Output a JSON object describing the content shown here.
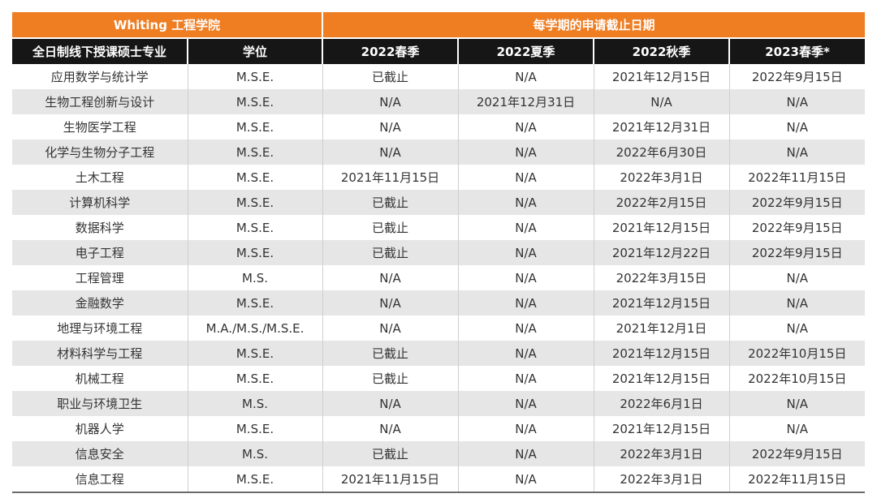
{
  "header": {
    "school": "Whiting 工程学院",
    "deadline_group": "每学期的申请截止日期"
  },
  "columns": [
    "全日制线下授课硕士专业",
    "学位",
    "2022春季",
    "2022夏季",
    "2022秋季",
    "2023春季*"
  ],
  "rows": [
    [
      "应用数学与统计学",
      "M.S.E.",
      "已截止",
      "N/A",
      "2021年12月15日",
      "2022年9月15日"
    ],
    [
      "生物工程创新与设计",
      "M.S.E.",
      "N/A",
      "2021年12月31日",
      "N/A",
      "N/A"
    ],
    [
      "生物医学工程",
      "M.S.E.",
      "N/A",
      "N/A",
      "2021年12月31日",
      "N/A"
    ],
    [
      "化学与生物分子工程",
      "M.S.E.",
      "N/A",
      "N/A",
      "2022年6月30日",
      "N/A"
    ],
    [
      "土木工程",
      "M.S.E.",
      "2021年11月15日",
      "N/A",
      "2022年3月1日",
      "2022年11月15日"
    ],
    [
      "计算机科学",
      "M.S.E.",
      "已截止",
      "N/A",
      "2022年2月15日",
      "2022年9月15日"
    ],
    [
      "数据科学",
      "M.S.E.",
      "已截止",
      "N/A",
      "2021年12月15日",
      "2022年9月15日"
    ],
    [
      "电子工程",
      "M.S.E.",
      "已截止",
      "N/A",
      "2021年12月22日",
      "2022年9月15日"
    ],
    [
      "工程管理",
      "M.S.",
      "N/A",
      "N/A",
      "2022年3月15日",
      "N/A"
    ],
    [
      "金融数学",
      "M.S.E.",
      "N/A",
      "N/A",
      "2021年12月15日",
      "N/A"
    ],
    [
      "地理与环境工程",
      "M.A./M.S./M.S.E.",
      "N/A",
      "N/A",
      "2021年12月1日",
      "N/A"
    ],
    [
      "材料科学与工程",
      "M.S.E.",
      "已截止",
      "N/A",
      "2021年12月15日",
      "2022年10月15日"
    ],
    [
      "机械工程",
      "M.S.E.",
      "已截止",
      "N/A",
      "2021年12月15日",
      "2022年10月15日"
    ],
    [
      "职业与环境卫生",
      "M.S.",
      "N/A",
      "N/A",
      "2022年6月1日",
      "N/A"
    ],
    [
      "机器人学",
      "M.S.E.",
      "N/A",
      "N/A",
      "2021年12月15日",
      "N/A"
    ],
    [
      "信息安全",
      "M.S.",
      "已截止",
      "N/A",
      "2022年3月1日",
      "2022年9月15日"
    ],
    [
      "信息工程",
      "M.S.E.",
      "2021年11月15日",
      "N/A",
      "2022年3月1日",
      "2022年11月15日"
    ]
  ]
}
